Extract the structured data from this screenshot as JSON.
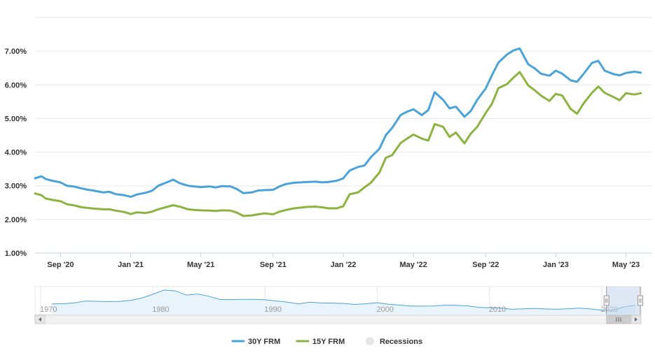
{
  "chart_data": {
    "type": "line",
    "title": "",
    "xlabel": "",
    "ylabel": "",
    "ylim": [
      1.0,
      8.0
    ],
    "y_ticks": [
      {
        "value": 1,
        "label": "1.00%"
      },
      {
        "value": 2,
        "label": "2.00%"
      },
      {
        "value": 3,
        "label": "3.00%"
      },
      {
        "value": 4,
        "label": "4.00%"
      },
      {
        "value": 5,
        "label": "5.00%"
      },
      {
        "value": 6,
        "label": "6.00%"
      },
      {
        "value": 7,
        "label": "7.00%"
      }
    ],
    "x_range": [
      2020.55,
      2023.45
    ],
    "x_ticks": [
      {
        "value": 2020.67,
        "label": "Sep '20"
      },
      {
        "value": 2021.0,
        "label": "Jan '21"
      },
      {
        "value": 2021.33,
        "label": "May '21"
      },
      {
        "value": 2021.67,
        "label": "Sep '21"
      },
      {
        "value": 2022.0,
        "label": "Jan '22"
      },
      {
        "value": 2022.33,
        "label": "May '22"
      },
      {
        "value": 2022.67,
        "label": "Sep '22"
      },
      {
        "value": 2023.0,
        "label": "Jan '23"
      },
      {
        "value": 2023.33,
        "label": "May '23"
      }
    ],
    "series": [
      {
        "name": "30Y FRM",
        "color": "#4aa3d8",
        "points": [
          [
            2020.55,
            3.22
          ],
          [
            2020.58,
            3.28
          ],
          [
            2020.6,
            3.2
          ],
          [
            2020.63,
            3.15
          ],
          [
            2020.67,
            3.1
          ],
          [
            2020.7,
            3.0
          ],
          [
            2020.73,
            2.98
          ],
          [
            2020.77,
            2.92
          ],
          [
            2020.8,
            2.88
          ],
          [
            2020.83,
            2.85
          ],
          [
            2020.87,
            2.8
          ],
          [
            2020.9,
            2.82
          ],
          [
            2020.93,
            2.75
          ],
          [
            2020.97,
            2.72
          ],
          [
            2021.0,
            2.67
          ],
          [
            2021.03,
            2.74
          ],
          [
            2021.07,
            2.79
          ],
          [
            2021.1,
            2.85
          ],
          [
            2021.13,
            3.0
          ],
          [
            2021.17,
            3.1
          ],
          [
            2021.2,
            3.18
          ],
          [
            2021.23,
            3.08
          ],
          [
            2021.27,
            3.0
          ],
          [
            2021.3,
            2.98
          ],
          [
            2021.33,
            2.96
          ],
          [
            2021.37,
            2.98
          ],
          [
            2021.4,
            2.95
          ],
          [
            2021.43,
            2.99
          ],
          [
            2021.47,
            2.98
          ],
          [
            2021.5,
            2.9
          ],
          [
            2021.53,
            2.78
          ],
          [
            2021.57,
            2.8
          ],
          [
            2021.6,
            2.86
          ],
          [
            2021.63,
            2.87
          ],
          [
            2021.67,
            2.88
          ],
          [
            2021.7,
            2.98
          ],
          [
            2021.73,
            3.05
          ],
          [
            2021.77,
            3.09
          ],
          [
            2021.8,
            3.1
          ],
          [
            2021.83,
            3.11
          ],
          [
            2021.87,
            3.12
          ],
          [
            2021.9,
            3.1
          ],
          [
            2021.93,
            3.11
          ],
          [
            2021.97,
            3.15
          ],
          [
            2022.0,
            3.22
          ],
          [
            2022.03,
            3.45
          ],
          [
            2022.07,
            3.56
          ],
          [
            2022.1,
            3.6
          ],
          [
            2022.13,
            3.85
          ],
          [
            2022.17,
            4.1
          ],
          [
            2022.2,
            4.5
          ],
          [
            2022.23,
            4.72
          ],
          [
            2022.27,
            5.1
          ],
          [
            2022.3,
            5.2
          ],
          [
            2022.33,
            5.27
          ],
          [
            2022.37,
            5.1
          ],
          [
            2022.4,
            5.25
          ],
          [
            2022.43,
            5.78
          ],
          [
            2022.47,
            5.55
          ],
          [
            2022.5,
            5.3
          ],
          [
            2022.53,
            5.35
          ],
          [
            2022.57,
            5.05
          ],
          [
            2022.6,
            5.22
          ],
          [
            2022.63,
            5.55
          ],
          [
            2022.67,
            5.89
          ],
          [
            2022.7,
            6.29
          ],
          [
            2022.73,
            6.66
          ],
          [
            2022.77,
            6.9
          ],
          [
            2022.8,
            7.02
          ],
          [
            2022.83,
            7.08
          ],
          [
            2022.87,
            6.61
          ],
          [
            2022.9,
            6.49
          ],
          [
            2022.93,
            6.33
          ],
          [
            2022.97,
            6.27
          ],
          [
            2023.0,
            6.42
          ],
          [
            2023.03,
            6.33
          ],
          [
            2023.07,
            6.13
          ],
          [
            2023.1,
            6.09
          ],
          [
            2023.13,
            6.32
          ],
          [
            2023.17,
            6.65
          ],
          [
            2023.2,
            6.71
          ],
          [
            2023.23,
            6.42
          ],
          [
            2023.27,
            6.32
          ],
          [
            2023.3,
            6.28
          ],
          [
            2023.33,
            6.35
          ],
          [
            2023.37,
            6.39
          ],
          [
            2023.4,
            6.36
          ]
        ]
      },
      {
        "name": "15Y FRM",
        "color": "#8cb23f",
        "points": [
          [
            2020.55,
            2.77
          ],
          [
            2020.58,
            2.72
          ],
          [
            2020.6,
            2.62
          ],
          [
            2020.63,
            2.58
          ],
          [
            2020.67,
            2.54
          ],
          [
            2020.7,
            2.45
          ],
          [
            2020.73,
            2.42
          ],
          [
            2020.77,
            2.36
          ],
          [
            2020.8,
            2.34
          ],
          [
            2020.83,
            2.32
          ],
          [
            2020.87,
            2.3
          ],
          [
            2020.9,
            2.3
          ],
          [
            2020.93,
            2.26
          ],
          [
            2020.97,
            2.22
          ],
          [
            2021.0,
            2.16
          ],
          [
            2021.03,
            2.21
          ],
          [
            2021.07,
            2.19
          ],
          [
            2021.1,
            2.23
          ],
          [
            2021.13,
            2.3
          ],
          [
            2021.17,
            2.37
          ],
          [
            2021.2,
            2.42
          ],
          [
            2021.23,
            2.38
          ],
          [
            2021.27,
            2.3
          ],
          [
            2021.3,
            2.28
          ],
          [
            2021.33,
            2.27
          ],
          [
            2021.37,
            2.26
          ],
          [
            2021.4,
            2.25
          ],
          [
            2021.43,
            2.27
          ],
          [
            2021.47,
            2.26
          ],
          [
            2021.5,
            2.2
          ],
          [
            2021.53,
            2.1
          ],
          [
            2021.57,
            2.12
          ],
          [
            2021.6,
            2.15
          ],
          [
            2021.63,
            2.18
          ],
          [
            2021.67,
            2.15
          ],
          [
            2021.7,
            2.23
          ],
          [
            2021.73,
            2.28
          ],
          [
            2021.77,
            2.33
          ],
          [
            2021.8,
            2.35
          ],
          [
            2021.83,
            2.37
          ],
          [
            2021.87,
            2.38
          ],
          [
            2021.9,
            2.36
          ],
          [
            2021.93,
            2.33
          ],
          [
            2021.97,
            2.33
          ],
          [
            2022.0,
            2.39
          ],
          [
            2022.03,
            2.75
          ],
          [
            2022.07,
            2.8
          ],
          [
            2022.1,
            2.95
          ],
          [
            2022.13,
            3.09
          ],
          [
            2022.17,
            3.39
          ],
          [
            2022.2,
            3.83
          ],
          [
            2022.23,
            3.91
          ],
          [
            2022.27,
            4.27
          ],
          [
            2022.3,
            4.4
          ],
          [
            2022.33,
            4.52
          ],
          [
            2022.37,
            4.4
          ],
          [
            2022.4,
            4.34
          ],
          [
            2022.43,
            4.83
          ],
          [
            2022.47,
            4.75
          ],
          [
            2022.5,
            4.45
          ],
          [
            2022.53,
            4.58
          ],
          [
            2022.57,
            4.26
          ],
          [
            2022.6,
            4.55
          ],
          [
            2022.63,
            4.75
          ],
          [
            2022.67,
            5.16
          ],
          [
            2022.7,
            5.44
          ],
          [
            2022.73,
            5.9
          ],
          [
            2022.77,
            6.02
          ],
          [
            2022.8,
            6.21
          ],
          [
            2022.83,
            6.38
          ],
          [
            2022.87,
            5.98
          ],
          [
            2022.9,
            5.84
          ],
          [
            2022.93,
            5.68
          ],
          [
            2022.97,
            5.52
          ],
          [
            2023.0,
            5.73
          ],
          [
            2023.03,
            5.68
          ],
          [
            2023.07,
            5.28
          ],
          [
            2023.1,
            5.14
          ],
          [
            2023.13,
            5.44
          ],
          [
            2023.17,
            5.76
          ],
          [
            2023.2,
            5.95
          ],
          [
            2023.23,
            5.76
          ],
          [
            2023.27,
            5.64
          ],
          [
            2023.3,
            5.54
          ],
          [
            2023.33,
            5.75
          ],
          [
            2023.37,
            5.71
          ],
          [
            2023.4,
            5.75
          ]
        ]
      }
    ],
    "navigator": {
      "years": [
        "1970",
        "1980",
        "1990",
        "2000",
        "2010",
        "2020"
      ],
      "range": [
        1969.5,
        2023.5
      ],
      "points": [
        [
          1971,
          7.3
        ],
        [
          1972,
          7.4
        ],
        [
          1973,
          8.0
        ],
        [
          1974,
          9.2
        ],
        [
          1975,
          9.0
        ],
        [
          1976,
          8.8
        ],
        [
          1977,
          8.9
        ],
        [
          1978,
          9.6
        ],
        [
          1979,
          11.2
        ],
        [
          1980,
          13.7
        ],
        [
          1981,
          16.6
        ],
        [
          1982,
          16.0
        ],
        [
          1983,
          13.2
        ],
        [
          1984,
          13.9
        ],
        [
          1985,
          12.4
        ],
        [
          1986,
          10.2
        ],
        [
          1987,
          10.2
        ],
        [
          1988,
          10.3
        ],
        [
          1989,
          10.3
        ],
        [
          1990,
          10.1
        ],
        [
          1991,
          9.2
        ],
        [
          1992,
          8.4
        ],
        [
          1993,
          7.3
        ],
        [
          1994,
          8.4
        ],
        [
          1995,
          7.9
        ],
        [
          1996,
          7.8
        ],
        [
          1997,
          7.6
        ],
        [
          1998,
          6.9
        ],
        [
          1999,
          7.4
        ],
        [
          2000,
          8.1
        ],
        [
          2001,
          7.0
        ],
        [
          2002,
          6.5
        ],
        [
          2003,
          5.8
        ],
        [
          2004,
          5.8
        ],
        [
          2005,
          5.9
        ],
        [
          2006,
          6.4
        ],
        [
          2007,
          6.3
        ],
        [
          2008,
          6.0
        ],
        [
          2009,
          5.0
        ],
        [
          2010,
          4.7
        ],
        [
          2011,
          4.5
        ],
        [
          2012,
          3.7
        ],
        [
          2013,
          4.0
        ],
        [
          2014,
          4.2
        ],
        [
          2015,
          3.9
        ],
        [
          2016,
          3.7
        ],
        [
          2017,
          4.0
        ],
        [
          2018,
          4.5
        ],
        [
          2019,
          3.9
        ],
        [
          2020,
          3.1
        ],
        [
          2021,
          3.0
        ],
        [
          2022,
          5.3
        ],
        [
          2023,
          6.4
        ]
      ],
      "window": [
        2020.55,
        2023.45
      ]
    },
    "legend": [
      {
        "label": "30Y FRM",
        "color": "#4aa3d8",
        "kind": "line"
      },
      {
        "label": "15Y FRM",
        "color": "#8cb23f",
        "kind": "line"
      },
      {
        "label": "Recessions",
        "color": "#e6e6e6",
        "kind": "dot"
      }
    ],
    "legend_placement": "bottom"
  }
}
